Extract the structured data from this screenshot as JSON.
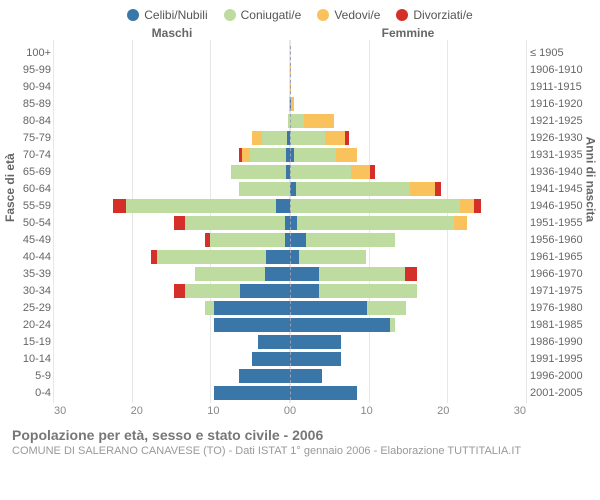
{
  "legend": [
    {
      "label": "Celibi/Nubili",
      "color": "#3a76a7"
    },
    {
      "label": "Coniugati/e",
      "color": "#bedba0"
    },
    {
      "label": "Vedovi/e",
      "color": "#f9c25c"
    },
    {
      "label": "Divorziati/e",
      "color": "#d42f28"
    }
  ],
  "gender_labels": {
    "m": "Maschi",
    "f": "Femmine"
  },
  "axis_titles": {
    "left": "Fasce di età",
    "right": "Anni di nascita"
  },
  "xaxis": {
    "max": 30,
    "ticks": [
      0,
      10,
      20,
      30
    ]
  },
  "colors": {
    "celibi": "#3a76a7",
    "coniugati": "#bedba0",
    "vedovi": "#f9c25c",
    "divorziati": "#d42f28",
    "grid": "#e7e7e7",
    "center_dash": "#9aa0b6",
    "bg": "#ffffff",
    "text": "#666666",
    "subtext": "#999999"
  },
  "footer": {
    "title": "Popolazione per età, sesso e stato civile - 2006",
    "sub": "COMUNE DI SALERANO CANAVESE (TO) - Dati ISTAT 1° gennaio 2006 - Elaborazione TUTTITALIA.IT"
  },
  "rows": [
    {
      "age": "100+",
      "birth": "≤ 1905",
      "m": {
        "c": 0,
        "g": 0,
        "v": 0,
        "d": 0
      },
      "f": {
        "c": 0,
        "g": 0,
        "v": 0,
        "d": 0
      }
    },
    {
      "age": "95-99",
      "birth": "1906-1910",
      "m": {
        "c": 0,
        "g": 0,
        "v": 0,
        "d": 0
      },
      "f": {
        "c": 0,
        "g": 0,
        "v": 2,
        "d": 0
      }
    },
    {
      "age": "90-94",
      "birth": "1911-1915",
      "m": {
        "c": 0,
        "g": 0,
        "v": 1,
        "d": 0
      },
      "f": {
        "c": 0,
        "g": 0,
        "v": 1,
        "d": 0
      }
    },
    {
      "age": "85-89",
      "birth": "1916-1920",
      "m": {
        "c": 0,
        "g": 1,
        "v": 1,
        "d": 0
      },
      "f": {
        "c": 1,
        "g": 0,
        "v": 3,
        "d": 0
      }
    },
    {
      "age": "80-84",
      "birth": "1921-1925",
      "m": {
        "c": 0,
        "g": 3,
        "v": 0,
        "d": 0
      },
      "f": {
        "c": 0,
        "g": 4,
        "v": 9,
        "d": 0
      }
    },
    {
      "age": "75-79",
      "birth": "1926-1930",
      "m": {
        "c": 1,
        "g": 8,
        "v": 3,
        "d": 0
      },
      "f": {
        "c": 0,
        "g": 9,
        "v": 5,
        "d": 1
      }
    },
    {
      "age": "70-74",
      "birth": "1931-1935",
      "m": {
        "c": 1,
        "g": 10,
        "v": 2,
        "d": 1
      },
      "f": {
        "c": 1,
        "g": 10,
        "v": 5,
        "d": 0
      }
    },
    {
      "age": "65-69",
      "birth": "1936-1940",
      "m": {
        "c": 1,
        "g": 14,
        "v": 0,
        "d": 0
      },
      "f": {
        "c": 0,
        "g": 13,
        "v": 4,
        "d": 1
      }
    },
    {
      "age": "60-64",
      "birth": "1941-1945",
      "m": {
        "c": 0,
        "g": 14,
        "v": 0,
        "d": 0
      },
      "f": {
        "c": 1,
        "g": 18,
        "v": 4,
        "d": 1
      }
    },
    {
      "age": "55-59",
      "birth": "1946-1950",
      "m": {
        "c": 2,
        "g": 22,
        "v": 0,
        "d": 2
      },
      "f": {
        "c": 0,
        "g": 24,
        "v": 2,
        "d": 1
      }
    },
    {
      "age": "50-54",
      "birth": "1951-1955",
      "m": {
        "c": 1,
        "g": 18,
        "v": 0,
        "d": 2
      },
      "f": {
        "c": 1,
        "g": 23,
        "v": 2,
        "d": 0
      }
    },
    {
      "age": "45-49",
      "birth": "1956-1960",
      "m": {
        "c": 1,
        "g": 16,
        "v": 0,
        "d": 1
      },
      "f": {
        "c": 3,
        "g": 17,
        "v": 0,
        "d": 0
      }
    },
    {
      "age": "40-44",
      "birth": "1961-1965",
      "m": {
        "c": 4,
        "g": 18,
        "v": 0,
        "d": 1
      },
      "f": {
        "c": 2,
        "g": 15,
        "v": 0,
        "d": 0
      }
    },
    {
      "age": "35-39",
      "birth": "1966-1970",
      "m": {
        "c": 5,
        "g": 14,
        "v": 0,
        "d": 0
      },
      "f": {
        "c": 5,
        "g": 15,
        "v": 0,
        "d": 2
      }
    },
    {
      "age": "30-34",
      "birth": "1971-1975",
      "m": {
        "c": 9,
        "g": 10,
        "v": 0,
        "d": 2
      },
      "f": {
        "c": 5,
        "g": 17,
        "v": 0,
        "d": 0
      }
    },
    {
      "age": "25-29",
      "birth": "1976-1980",
      "m": {
        "c": 16,
        "g": 2,
        "v": 0,
        "d": 0
      },
      "f": {
        "c": 14,
        "g": 7,
        "v": 0,
        "d": 0
      }
    },
    {
      "age": "20-24",
      "birth": "1981-1985",
      "m": {
        "c": 17,
        "g": 0,
        "v": 0,
        "d": 0
      },
      "f": {
        "c": 19,
        "g": 1,
        "v": 0,
        "d": 0
      }
    },
    {
      "age": "15-19",
      "birth": "1986-1990",
      "m": {
        "c": 11,
        "g": 0,
        "v": 0,
        "d": 0
      },
      "f": {
        "c": 14,
        "g": 0,
        "v": 0,
        "d": 0
      }
    },
    {
      "age": "10-14",
      "birth": "1991-1995",
      "m": {
        "c": 12,
        "g": 0,
        "v": 0,
        "d": 0
      },
      "f": {
        "c": 14,
        "g": 0,
        "v": 0,
        "d": 0
      }
    },
    {
      "age": "5-9",
      "birth": "1996-2000",
      "m": {
        "c": 14,
        "g": 0,
        "v": 0,
        "d": 0
      },
      "f": {
        "c": 11,
        "g": 0,
        "v": 0,
        "d": 0
      }
    },
    {
      "age": "0-4",
      "birth": "2001-2005",
      "m": {
        "c": 17,
        "g": 0,
        "v": 0,
        "d": 0
      },
      "f": {
        "c": 16,
        "g": 0,
        "v": 0,
        "d": 0
      }
    }
  ]
}
